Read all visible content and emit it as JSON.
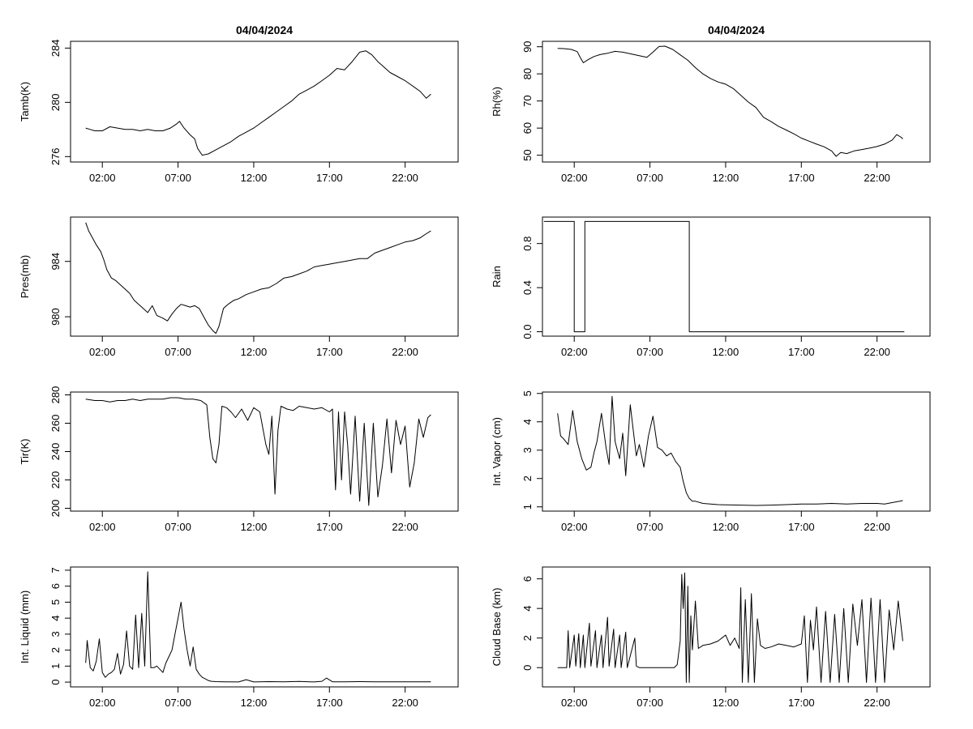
{
  "chart_data": [
    {
      "type": "line",
      "title": "04/04/2024",
      "xlabel": "",
      "ylabel": "Tamb(K)",
      "xlim": [
        -0.1,
        25.5
      ],
      "ylim": [
        275.6,
        284.5
      ],
      "xticks": [
        2,
        7,
        12,
        17,
        22
      ],
      "xtick_labels": [
        "02:00",
        "07:00",
        "12:00",
        "17:00",
        "22:00"
      ],
      "yticks": [
        276,
        280,
        284
      ],
      "ytick_labels": [
        "276",
        "280",
        "284"
      ],
      "x": [
        0.9,
        1.2,
        1.5,
        2.0,
        2.5,
        3.0,
        3.5,
        4.0,
        4.5,
        5.0,
        5.5,
        6.0,
        6.5,
        6.9,
        7.1,
        7.4,
        7.8,
        8.1,
        8.3,
        8.6,
        9.0,
        9.5,
        10.0,
        10.5,
        11.0,
        11.5,
        12.0,
        12.5,
        13.0,
        13.5,
        14.0,
        14.5,
        15.0,
        15.5,
        16.0,
        16.5,
        17.0,
        17.5,
        18.0,
        18.5,
        19.0,
        19.4,
        19.8,
        20.2,
        20.6,
        21.0,
        21.5,
        22.0,
        22.5,
        23.0,
        23.4,
        23.7
      ],
      "y": [
        278.1,
        278.0,
        277.9,
        277.9,
        278.2,
        278.1,
        278.0,
        278.0,
        277.9,
        278.0,
        277.9,
        277.9,
        278.1,
        278.4,
        278.6,
        278.1,
        277.6,
        277.3,
        276.6,
        276.1,
        276.2,
        276.5,
        276.8,
        277.1,
        277.5,
        277.8,
        278.1,
        278.5,
        278.9,
        279.3,
        279.7,
        280.1,
        280.6,
        280.9,
        281.2,
        281.6,
        282.0,
        282.5,
        282.4,
        283.0,
        283.7,
        283.8,
        283.5,
        283.0,
        282.6,
        282.2,
        281.9,
        281.6,
        281.2,
        280.8,
        280.3,
        280.6
      ]
    },
    {
      "type": "line",
      "title": "04/04/2024",
      "xlabel": "",
      "ylabel": "Rh(%)",
      "xlim": [
        -0.1,
        25.5
      ],
      "ylim": [
        47.5,
        92
      ],
      "xticks": [
        2,
        7,
        12,
        17,
        22
      ],
      "xtick_labels": [
        "02:00",
        "07:00",
        "12:00",
        "17:00",
        "22:00"
      ],
      "yticks": [
        50,
        60,
        70,
        80,
        90
      ],
      "ytick_labels": [
        "50",
        "60",
        "70",
        "80",
        "90"
      ],
      "x": [
        0.9,
        1.3,
        1.8,
        2.2,
        2.4,
        2.6,
        2.9,
        3.3,
        3.7,
        4.2,
        4.7,
        5.2,
        5.7,
        6.2,
        6.8,
        7.2,
        7.6,
        8.0,
        8.5,
        9.0,
        9.5,
        10.0,
        10.5,
        11.0,
        11.5,
        12.0,
        12.5,
        13.0,
        13.5,
        14.0,
        14.5,
        15.0,
        15.5,
        16.0,
        16.5,
        17.0,
        17.5,
        18.0,
        18.5,
        19.0,
        19.3,
        19.6,
        20.0,
        20.5,
        21.0,
        21.5,
        22.0,
        22.5,
        23.0,
        23.3,
        23.6,
        23.7
      ],
      "y": [
        89.4,
        89.3,
        89.0,
        88.2,
        86.0,
        84.1,
        85.2,
        86.4,
        87.1,
        87.6,
        88.3,
        88.0,
        87.4,
        86.8,
        86.1,
        88.0,
        90.1,
        90.2,
        89.0,
        87.0,
        85.0,
        82.3,
        80.0,
        78.3,
        77.0,
        76.2,
        74.6,
        72.1,
        69.6,
        67.6,
        64.0,
        62.4,
        60.6,
        59.3,
        57.9,
        56.3,
        55.2,
        54.1,
        53.1,
        51.6,
        49.6,
        51.0,
        50.6,
        51.6,
        52.1,
        52.6,
        53.2,
        54.1,
        55.6,
        57.6,
        56.6,
        56.0
      ]
    },
    {
      "type": "line",
      "title": "",
      "xlabel": "",
      "ylabel": "Pres(mb)",
      "xlim": [
        -0.1,
        25.5
      ],
      "ylim": [
        978.6,
        987.2
      ],
      "xticks": [
        2,
        7,
        12,
        17,
        22
      ],
      "xtick_labels": [
        "02:00",
        "07:00",
        "12:00",
        "17:00",
        "22:00"
      ],
      "yticks": [
        980,
        984
      ],
      "ytick_labels": [
        "980",
        "984"
      ],
      "x": [
        0.9,
        1.1,
        1.3,
        1.6,
        1.9,
        2.1,
        2.3,
        2.6,
        2.9,
        3.2,
        3.5,
        3.8,
        4.1,
        4.4,
        4.7,
        5.0,
        5.3,
        5.6,
        6.0,
        6.3,
        6.6,
        6.9,
        7.2,
        7.5,
        7.8,
        8.1,
        8.4,
        8.7,
        9.0,
        9.3,
        9.5,
        9.7,
        10.0,
        10.3,
        10.7,
        11.0,
        11.5,
        12.0,
        12.5,
        13.0,
        13.5,
        14.0,
        14.5,
        15.0,
        15.5,
        16.0,
        16.5,
        17.0,
        17.5,
        18.0,
        18.5,
        19.0,
        19.5,
        20.0,
        20.5,
        21.0,
        21.5,
        22.0,
        22.5,
        23.0,
        23.4,
        23.7
      ],
      "y": [
        986.8,
        986.2,
        985.8,
        985.2,
        984.7,
        984.1,
        983.4,
        982.8,
        982.6,
        982.3,
        982.0,
        981.7,
        981.2,
        980.9,
        980.6,
        980.3,
        980.8,
        980.1,
        979.9,
        979.7,
        980.2,
        980.6,
        980.9,
        980.8,
        980.7,
        980.8,
        980.6,
        980.0,
        979.4,
        979.0,
        978.8,
        979.3,
        980.6,
        980.9,
        981.2,
        981.3,
        981.6,
        981.8,
        982.0,
        982.1,
        982.4,
        982.8,
        982.9,
        983.1,
        983.3,
        983.6,
        983.7,
        983.8,
        983.9,
        984.0,
        984.1,
        984.2,
        984.2,
        984.6,
        984.8,
        985.0,
        985.2,
        985.4,
        985.5,
        985.7,
        986.0,
        986.2
      ]
    },
    {
      "type": "line",
      "title": "",
      "xlabel": "",
      "ylabel": "Rain",
      "xlim": [
        -0.1,
        25.5
      ],
      "ylim": [
        -0.04,
        1.04
      ],
      "xticks": [
        2,
        7,
        12,
        17,
        22
      ],
      "xtick_labels": [
        "02:00",
        "07:00",
        "12:00",
        "17:00",
        "22:00"
      ],
      "yticks": [
        0.0,
        0.4,
        0.8
      ],
      "ytick_labels": [
        "0.0",
        "0.4",
        "0.8"
      ],
      "step": true,
      "x": [
        0.0,
        2.0,
        2.0,
        2.7,
        2.7,
        9.6,
        9.6,
        23.8
      ],
      "y": [
        1,
        1,
        0,
        0,
        1,
        1,
        0,
        0
      ]
    },
    {
      "type": "line",
      "title": "",
      "xlabel": "",
      "ylabel": "Tir(K)",
      "xlim": [
        -0.1,
        25.5
      ],
      "ylim": [
        198,
        282
      ],
      "xticks": [
        2,
        7,
        12,
        17,
        22
      ],
      "xtick_labels": [
        "02:00",
        "07:00",
        "12:00",
        "17:00",
        "22:00"
      ],
      "yticks": [
        200,
        220,
        240,
        260,
        280
      ],
      "ytick_labels": [
        "200",
        "220",
        "240",
        "260",
        "280"
      ],
      "x": [
        0.9,
        1.5,
        2.0,
        2.5,
        3.0,
        3.5,
        4.0,
        4.5,
        5.0,
        5.5,
        6.0,
        6.5,
        7.0,
        7.5,
        8.0,
        8.5,
        8.9,
        9.1,
        9.3,
        9.5,
        9.7,
        9.9,
        10.2,
        10.5,
        10.8,
        11.2,
        11.6,
        12.0,
        12.4,
        12.8,
        13.0,
        13.2,
        13.4,
        13.6,
        13.8,
        14.2,
        14.6,
        15.0,
        15.5,
        16.0,
        16.5,
        17.0,
        17.2,
        17.4,
        17.6,
        17.8,
        18.0,
        18.2,
        18.4,
        18.7,
        19.0,
        19.3,
        19.6,
        19.9,
        20.2,
        20.5,
        20.8,
        21.1,
        21.4,
        21.7,
        22.0,
        22.3,
        22.6,
        22.9,
        23.2,
        23.5,
        23.7
      ],
      "y": [
        277,
        276,
        276,
        275,
        276,
        276,
        277,
        276,
        277,
        277,
        277,
        278,
        278,
        277,
        277,
        276,
        273,
        250,
        235,
        232,
        245,
        272,
        271,
        268,
        264,
        270,
        262,
        271,
        268,
        245,
        238,
        265,
        210,
        255,
        272,
        270,
        269,
        272,
        271,
        270,
        271,
        268,
        270,
        213,
        268,
        220,
        268,
        245,
        210,
        265,
        205,
        260,
        202,
        260,
        208,
        230,
        263,
        225,
        262,
        245,
        258,
        215,
        232,
        263,
        250,
        264,
        266
      ]
    },
    {
      "type": "line",
      "title": "",
      "xlabel": "",
      "ylabel": "Int. Vapor (cm)",
      "xlim": [
        -0.1,
        25.5
      ],
      "ylim": [
        0.85,
        5.05
      ],
      "xticks": [
        2,
        7,
        12,
        17,
        22
      ],
      "xtick_labels": [
        "02:00",
        "07:00",
        "12:00",
        "17:00",
        "22:00"
      ],
      "yticks": [
        1,
        2,
        3,
        4,
        5
      ],
      "ytick_labels": [
        "1",
        "2",
        "3",
        "4",
        "5"
      ],
      "x": [
        0.9,
        1.1,
        1.3,
        1.6,
        1.9,
        2.2,
        2.5,
        2.8,
        3.1,
        3.3,
        3.5,
        3.8,
        4.1,
        4.3,
        4.5,
        4.7,
        5.0,
        5.2,
        5.4,
        5.7,
        5.9,
        6.1,
        6.3,
        6.6,
        6.9,
        7.2,
        7.5,
        7.8,
        8.1,
        8.4,
        8.7,
        9.0,
        9.2,
        9.4,
        9.6,
        9.8,
        10.0,
        10.5,
        11.0,
        11.5,
        12.0,
        13.0,
        14.0,
        15.0,
        16.0,
        17.0,
        18.0,
        19.0,
        20.0,
        21.0,
        22.0,
        22.5,
        23.0,
        23.5,
        23.7
      ],
      "y": [
        4.3,
        3.5,
        3.4,
        3.2,
        4.4,
        3.3,
        2.7,
        2.3,
        2.4,
        2.9,
        3.3,
        4.3,
        3.1,
        2.5,
        4.9,
        3.3,
        2.7,
        3.6,
        2.1,
        4.6,
        3.7,
        2.8,
        3.2,
        2.4,
        3.5,
        4.2,
        3.1,
        3.0,
        2.8,
        2.9,
        2.6,
        2.4,
        1.9,
        1.5,
        1.3,
        1.2,
        1.2,
        1.12,
        1.1,
        1.08,
        1.07,
        1.06,
        1.05,
        1.06,
        1.08,
        1.1,
        1.1,
        1.12,
        1.1,
        1.12,
        1.12,
        1.1,
        1.15,
        1.2,
        1.22
      ]
    },
    {
      "type": "line",
      "title": "",
      "xlabel": "",
      "ylabel": "Int. Liquid (mm)",
      "xlim": [
        -0.1,
        25.5
      ],
      "ylim": [
        -0.3,
        7.2
      ],
      "xticks": [
        2,
        7,
        12,
        17,
        22
      ],
      "xtick_labels": [
        "02:00",
        "07:00",
        "12:00",
        "17:00",
        "22:00"
      ],
      "yticks": [
        0,
        1,
        2,
        3,
        4,
        5,
        6,
        7
      ],
      "ytick_labels": [
        "0",
        "1",
        "2",
        "3",
        "4",
        "5",
        "6",
        "7"
      ],
      "x": [
        0.9,
        1.0,
        1.2,
        1.4,
        1.6,
        1.8,
        2.0,
        2.2,
        2.4,
        2.6,
        2.8,
        3.0,
        3.2,
        3.4,
        3.6,
        3.8,
        4.0,
        4.2,
        4.4,
        4.6,
        4.8,
        5.0,
        5.2,
        5.4,
        5.6,
        5.8,
        6.0,
        6.2,
        6.4,
        6.6,
        6.8,
        7.0,
        7.2,
        7.4,
        7.6,
        7.8,
        8.0,
        8.2,
        8.4,
        8.6,
        8.8,
        9.0,
        9.2,
        9.5,
        10.0,
        11.0,
        11.5,
        12.0,
        13.0,
        14.0,
        15.0,
        16.0,
        16.5,
        16.8,
        17.2,
        18.0,
        19.0,
        20.0,
        21.0,
        22.0,
        23.0,
        23.7
      ],
      "y": [
        1.2,
        2.6,
        0.9,
        0.7,
        1.3,
        2.7,
        0.6,
        0.3,
        0.5,
        0.6,
        0.8,
        1.8,
        0.5,
        1.1,
        3.2,
        1.0,
        0.8,
        4.2,
        0.9,
        4.3,
        1.0,
        6.9,
        0.9,
        0.9,
        1.0,
        0.8,
        0.6,
        1.2,
        1.6,
        2.0,
        3.0,
        4.0,
        5.0,
        3.3,
        2.0,
        1.0,
        2.2,
        0.8,
        0.5,
        0.3,
        0.2,
        0.1,
        0.05,
        0.03,
        0.02,
        0.01,
        0.15,
        0.01,
        0.03,
        0.02,
        0.04,
        0.01,
        0.05,
        0.25,
        0.02,
        0.02,
        0.03,
        0.02,
        0.02,
        0.02,
        0.02,
        0.02
      ]
    },
    {
      "type": "line",
      "title": "",
      "xlabel": "",
      "ylabel": "Cloud Base (km)",
      "xlim": [
        -0.1,
        25.5
      ],
      "ylim": [
        -1.3,
        6.8
      ],
      "xticks": [
        2,
        7,
        12,
        17,
        22
      ],
      "xtick_labels": [
        "02:00",
        "07:00",
        "12:00",
        "17:00",
        "22:00"
      ],
      "yticks": [
        0,
        2,
        4,
        6
      ],
      "ytick_labels": [
        "0",
        "2",
        "4",
        "6"
      ],
      "x": [
        0.9,
        1.5,
        1.6,
        1.7,
        2.0,
        2.1,
        2.3,
        2.4,
        2.6,
        2.7,
        3.0,
        3.1,
        3.4,
        3.5,
        3.8,
        3.9,
        4.2,
        4.3,
        4.6,
        4.7,
        5.0,
        5.1,
        5.4,
        5.5,
        6.0,
        6.1,
        6.3,
        6.4,
        8.6,
        8.8,
        9.0,
        9.1,
        9.2,
        9.3,
        9.4,
        9.5,
        9.6,
        9.7,
        9.8,
        10.0,
        10.2,
        10.5,
        11.0,
        11.5,
        12.0,
        12.3,
        12.6,
        12.9,
        13.0,
        13.1,
        13.3,
        13.5,
        13.7,
        13.9,
        14.1,
        14.3,
        14.6,
        15.0,
        15.5,
        16.0,
        16.5,
        17.0,
        17.2,
        17.4,
        17.6,
        17.8,
        18.0,
        18.3,
        18.6,
        18.9,
        19.2,
        19.5,
        19.8,
        20.1,
        20.4,
        20.7,
        21.0,
        21.3,
        21.6,
        21.9,
        22.2,
        22.5,
        22.8,
        23.1,
        23.4,
        23.7
      ],
      "y": [
        0.0,
        0.0,
        2.5,
        0.0,
        2.2,
        0.1,
        2.3,
        0.0,
        2.2,
        0.0,
        3.0,
        0.1,
        2.5,
        0.0,
        2.2,
        0.0,
        3.4,
        0.1,
        2.6,
        0.0,
        2.2,
        0.0,
        2.4,
        0.0,
        2.0,
        0.1,
        0.0,
        0.0,
        0.0,
        0.2,
        1.8,
        6.3,
        4.0,
        6.4,
        -1.0,
        5.5,
        -1.0,
        3.5,
        1.2,
        4.5,
        1.3,
        1.5,
        1.6,
        1.8,
        2.2,
        1.5,
        2.0,
        1.3,
        5.4,
        -1.0,
        4.6,
        -1.0,
        5.0,
        -1.0,
        3.3,
        1.5,
        1.3,
        1.4,
        1.6,
        1.5,
        1.4,
        1.6,
        3.5,
        -1.0,
        3.2,
        1.2,
        4.1,
        -1.0,
        3.8,
        -1.0,
        3.6,
        -1.0,
        4.0,
        -1.0,
        4.3,
        1.5,
        4.6,
        -1.0,
        4.7,
        -1.0,
        4.6,
        -1.0,
        3.9,
        1.2,
        4.5,
        1.8
      ]
    }
  ]
}
